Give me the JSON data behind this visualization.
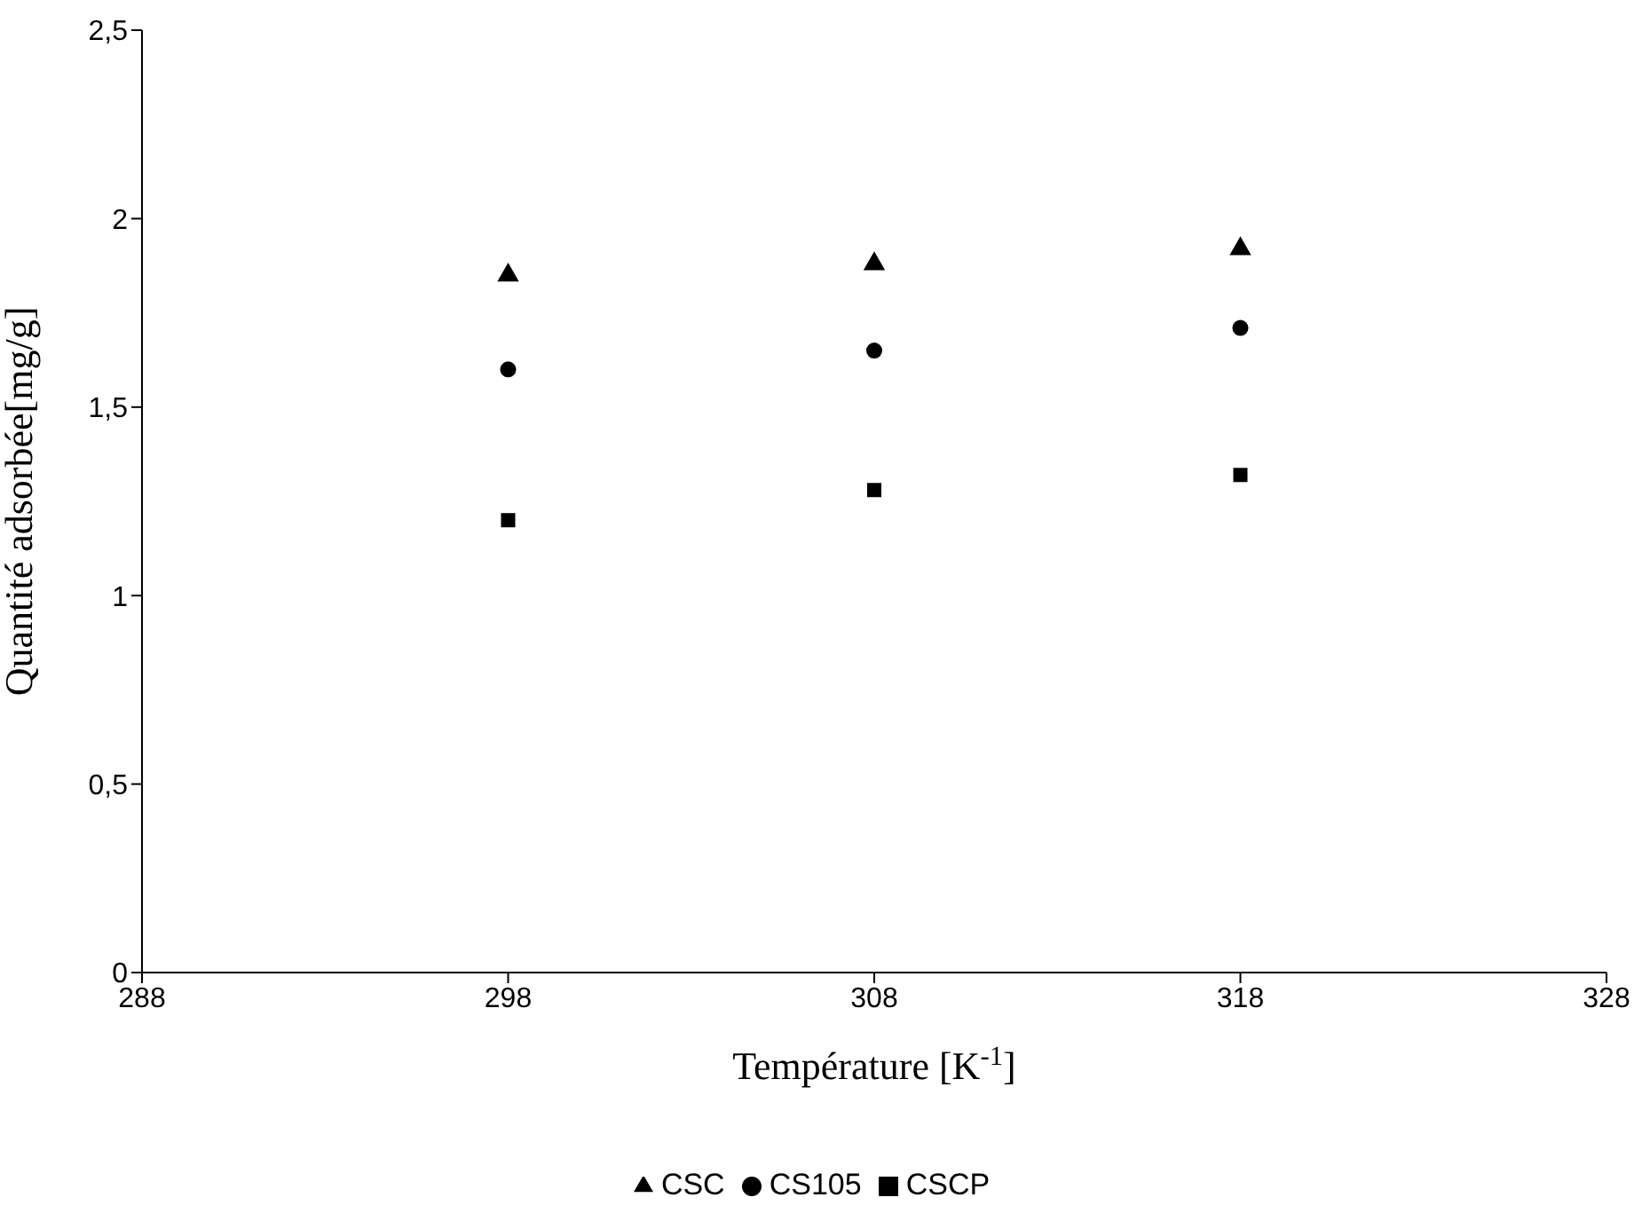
{
  "chart_data": {
    "type": "scatter",
    "xlabel": "Température [K$^{-1}$]",
    "ylabel": "Quantité adsorbée[mg/g]",
    "x": [
      298,
      308,
      318
    ],
    "series": [
      {
        "name": "CSC",
        "color": "#000000",
        "marker": "triangle",
        "values": [
          1.85,
          1.88,
          1.92
        ]
      },
      {
        "name": "CS105",
        "color": "#000000",
        "marker": "circle",
        "values": [
          1.6,
          1.65,
          1.71
        ]
      },
      {
        "name": "CSCP",
        "color": "#000000",
        "marker": "square",
        "values": [
          1.2,
          1.28,
          1.32
        ]
      }
    ],
    "xlim": [
      288,
      328
    ],
    "xticks": [
      288,
      298,
      308,
      318,
      328
    ],
    "ylim": [
      0,
      2.5
    ],
    "yticks": [
      0,
      {
        "value": 0.5,
        "label": "0,5"
      },
      1,
      {
        "value": 1.5,
        "label": "1,5"
      },
      2,
      {
        "value": 2.5,
        "label": "2,5"
      }
    ],
    "grid": false,
    "legend": "bottom"
  }
}
